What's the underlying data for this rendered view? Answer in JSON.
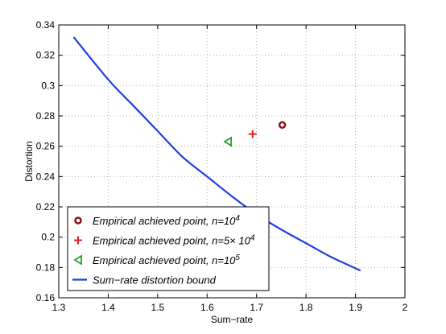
{
  "chart_data": {
    "type": "line",
    "title": "",
    "xlabel": "Sum−rate",
    "ylabel": "Distortion",
    "xlim": [
      1.3,
      2.0
    ],
    "ylim": [
      0.16,
      0.34
    ],
    "xticks": [
      "1.3",
      "1.4",
      "1.5",
      "1.6",
      "1.7",
      "1.8",
      "1.9",
      "2"
    ],
    "yticks": [
      "0.16",
      "0.18",
      "0.2",
      "0.22",
      "0.24",
      "0.26",
      "0.28",
      "0.3",
      "0.32",
      "0.34"
    ],
    "grid": true,
    "legend_position": "bottom-left",
    "series": [
      {
        "name": "Sum−rate distortion bound",
        "kind": "line",
        "color": "#1f3fe0",
        "x": [
          1.33,
          1.4,
          1.45,
          1.5,
          1.55,
          1.6,
          1.65,
          1.7,
          1.75,
          1.8,
          1.85,
          1.91
        ],
        "y": [
          0.332,
          0.304,
          0.287,
          0.27,
          0.253,
          0.24,
          0.227,
          0.215,
          0.205,
          0.196,
          0.187,
          0.178
        ]
      },
      {
        "name": "Empirical achieved point, n=10",
        "sup": "4",
        "kind": "point",
        "marker": "circle",
        "color": "#8b1010",
        "x": [
          1.752
        ],
        "y": [
          0.274
        ]
      },
      {
        "name": "Empirical achieved point, n=5× 10",
        "sup": "4",
        "kind": "point",
        "marker": "plus",
        "color": "#e02020",
        "x": [
          1.692
        ],
        "y": [
          0.268
        ]
      },
      {
        "name": "Empirical achieved point, n=10",
        "sup": "5",
        "kind": "point",
        "marker": "triangle-left",
        "color": "#2aa02a",
        "x": [
          1.642
        ],
        "y": [
          0.263
        ]
      }
    ],
    "legend_order": [
      1,
      2,
      3,
      0
    ]
  }
}
